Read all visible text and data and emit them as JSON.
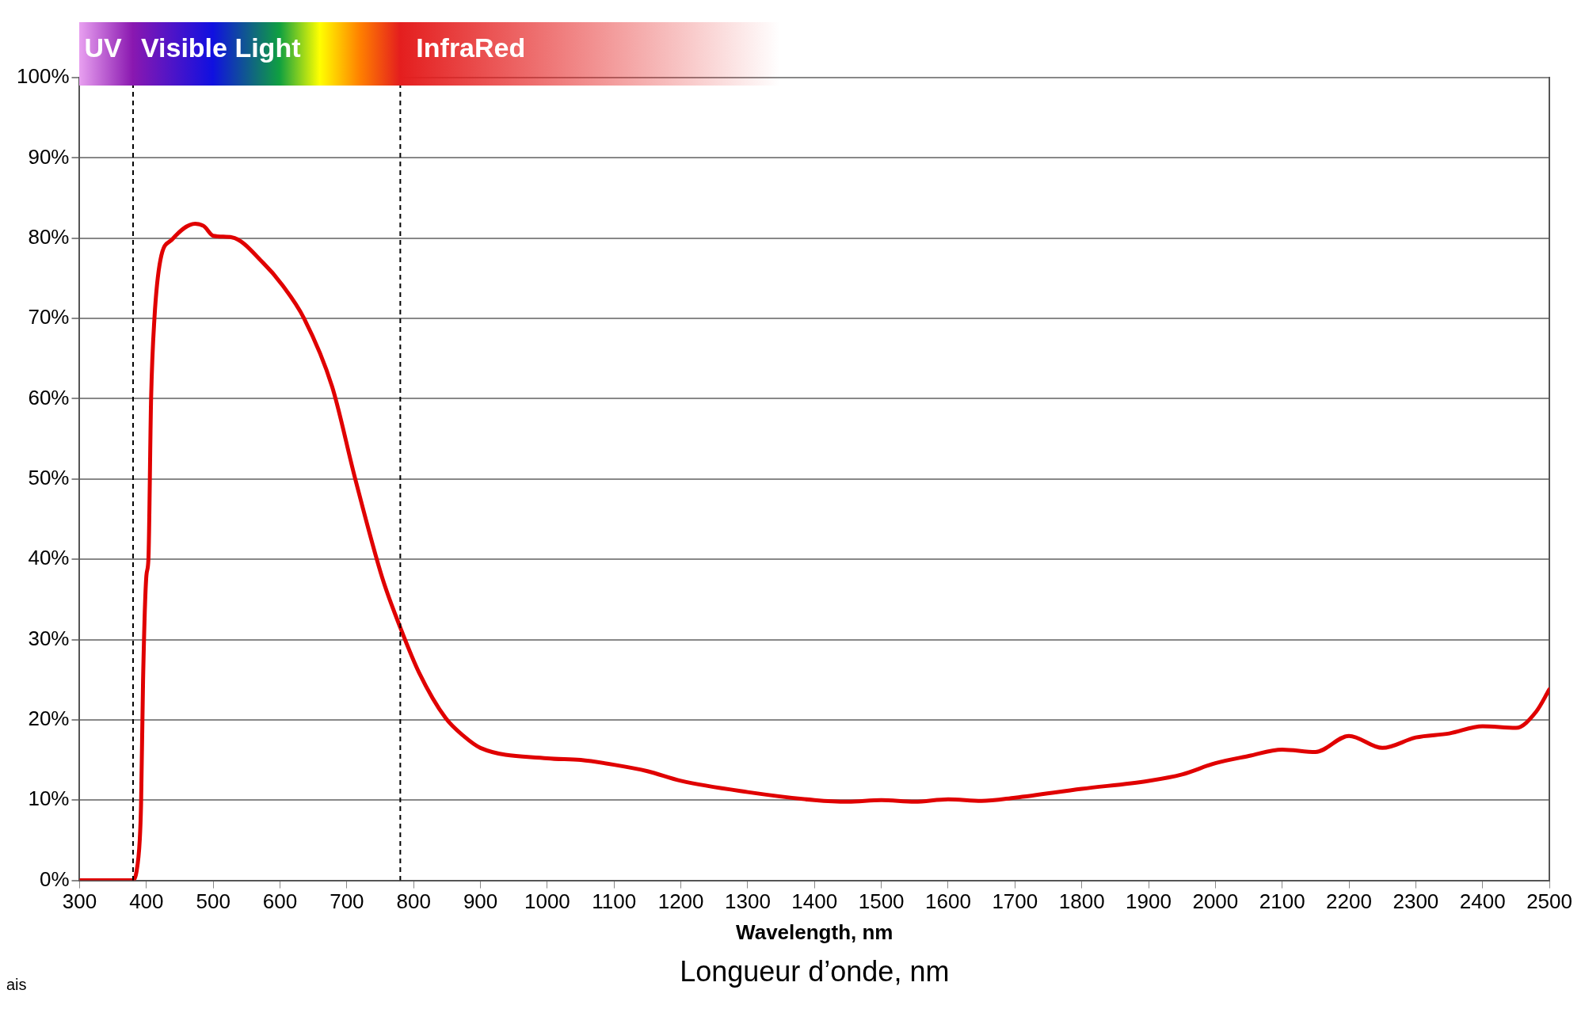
{
  "chart_data": {
    "type": "line",
    "xlabel": "Wavelength, nm",
    "annotations": [
      "UV",
      "Visible Light",
      "InfraRed",
      "Longueur d’onde, nm",
      "ais"
    ],
    "x": [
      300,
      380,
      385,
      390,
      392,
      395,
      400,
      403,
      407,
      412,
      421,
      438,
      473,
      486,
      500,
      528,
      575,
      603,
      636,
      678,
      712,
      753,
      780,
      808,
      848,
      876,
      900,
      1000,
      1050,
      1100,
      1150,
      1200,
      1300,
      1400,
      1450,
      1500,
      1550,
      1600,
      1650,
      1700,
      1800,
      1900,
      1950,
      2000,
      2050,
      2100,
      2150,
      2200,
      2250,
      2300,
      2350,
      2400,
      2450,
      2480,
      2500
    ],
    "series": [
      {
        "color": "#e00000",
        "values": [
          0,
          0,
          1,
          5,
          9.5,
          25,
          38,
          40,
          60,
          70,
          77.3,
          79.8,
          81.8,
          81.5,
          80.3,
          80.1,
          76.9,
          74.2,
          70,
          61.5,
          50.2,
          37.7,
          31.5,
          25.9,
          20.2,
          17.9,
          16.5,
          15.2,
          15,
          14.4,
          13.6,
          12.4,
          11,
          10,
          9.8,
          10,
          9.8,
          10.1,
          9.9,
          10.3,
          11.4,
          12.4,
          13.2,
          14.6,
          15.5,
          16.3,
          16,
          18,
          16.5,
          17.8,
          18.3,
          19.2,
          19,
          21,
          23.8
        ]
      }
    ],
    "xlim": [
      300,
      2500
    ],
    "xticks": [
      300,
      400,
      500,
      600,
      700,
      800,
      900,
      1000,
      1100,
      1200,
      1300,
      1400,
      1500,
      1600,
      1700,
      1800,
      1900,
      2000,
      2100,
      2200,
      2300,
      2400,
      2500
    ],
    "ylim": [
      0,
      100
    ],
    "yticks": [
      {
        "value": 0,
        "label": "0%"
      },
      {
        "value": 10,
        "label": "10%"
      },
      {
        "value": 20,
        "label": "20%"
      },
      {
        "value": 30,
        "label": "30%"
      },
      {
        "value": 40,
        "label": "40%"
      },
      {
        "value": 50,
        "label": "50%"
      },
      {
        "value": 60,
        "label": "60%"
      },
      {
        "value": 70,
        "label": "70%"
      },
      {
        "value": 80,
        "label": "80%"
      },
      {
        "value": 90,
        "label": "90%"
      },
      {
        "value": 100,
        "label": "100%"
      }
    ],
    "grid": "y",
    "legend": false,
    "marker": "none",
    "line_style": "solid",
    "ref_lines": [
      {
        "axis": "x",
        "value": 380,
        "line_style": "dashed"
      },
      {
        "axis": "x",
        "value": 780,
        "line_style": "dashed"
      }
    ]
  }
}
